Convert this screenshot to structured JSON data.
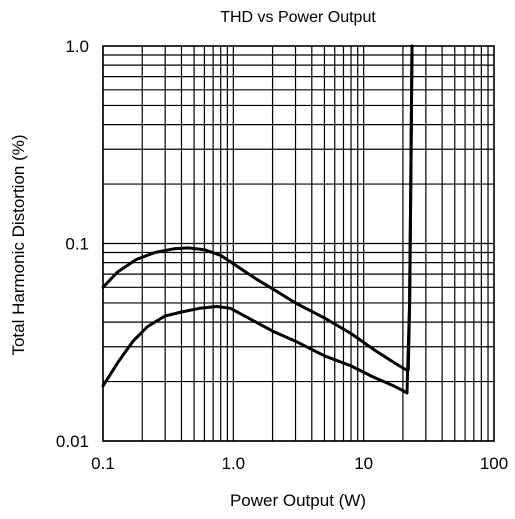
{
  "chart_data": {
    "type": "line",
    "title": "THD vs Power Output",
    "xlabel": "Power Output (W)",
    "ylabel": "Total Harmonic Distortion (%)",
    "x_scale": "log",
    "y_scale": "log",
    "xlim": [
      0.1,
      100
    ],
    "ylim": [
      0.01,
      1.0
    ],
    "x_ticks": [
      {
        "value": 0.1,
        "label": "0.1"
      },
      {
        "value": 1,
        "label": "1.0"
      },
      {
        "value": 10,
        "label": "10"
      },
      {
        "value": 100,
        "label": "100"
      }
    ],
    "y_ticks": [
      {
        "value": 0.01,
        "label": "0.01"
      },
      {
        "value": 0.1,
        "label": "0.1"
      },
      {
        "value": 1,
        "label": "1.0"
      }
    ],
    "grid": true,
    "series": [
      {
        "color": "#000000",
        "points": [
          [
            0.1,
            0.06
          ],
          [
            0.13,
            0.072
          ],
          [
            0.18,
            0.083
          ],
          [
            0.25,
            0.09
          ],
          [
            0.35,
            0.094
          ],
          [
            0.45,
            0.095
          ],
          [
            0.6,
            0.093
          ],
          [
            0.8,
            0.087
          ],
          [
            1.0,
            0.079
          ],
          [
            1.5,
            0.066
          ],
          [
            2,
            0.059
          ],
          [
            3,
            0.05
          ],
          [
            5,
            0.042
          ],
          [
            8,
            0.035
          ],
          [
            12,
            0.029
          ],
          [
            17,
            0.025
          ],
          [
            21,
            0.023
          ],
          [
            22,
            0.023
          ],
          [
            22.5,
            0.05
          ],
          [
            23,
            0.2
          ],
          [
            23.5,
            1.0
          ]
        ]
      },
      {
        "color": "#000000",
        "points": [
          [
            0.1,
            0.019
          ],
          [
            0.13,
            0.025
          ],
          [
            0.17,
            0.032
          ],
          [
            0.22,
            0.038
          ],
          [
            0.3,
            0.043
          ],
          [
            0.4,
            0.045
          ],
          [
            0.55,
            0.047
          ],
          [
            0.75,
            0.048
          ],
          [
            0.95,
            0.047
          ],
          [
            1.3,
            0.042
          ],
          [
            2,
            0.036
          ],
          [
            3,
            0.032
          ],
          [
            5,
            0.027
          ],
          [
            8,
            0.024
          ],
          [
            12,
            0.021
          ],
          [
            17,
            0.019
          ],
          [
            20,
            0.018
          ],
          [
            21.5,
            0.0175
          ],
          [
            22.5,
            0.05
          ],
          [
            23,
            0.2
          ],
          [
            23.5,
            1.0
          ]
        ]
      }
    ]
  }
}
